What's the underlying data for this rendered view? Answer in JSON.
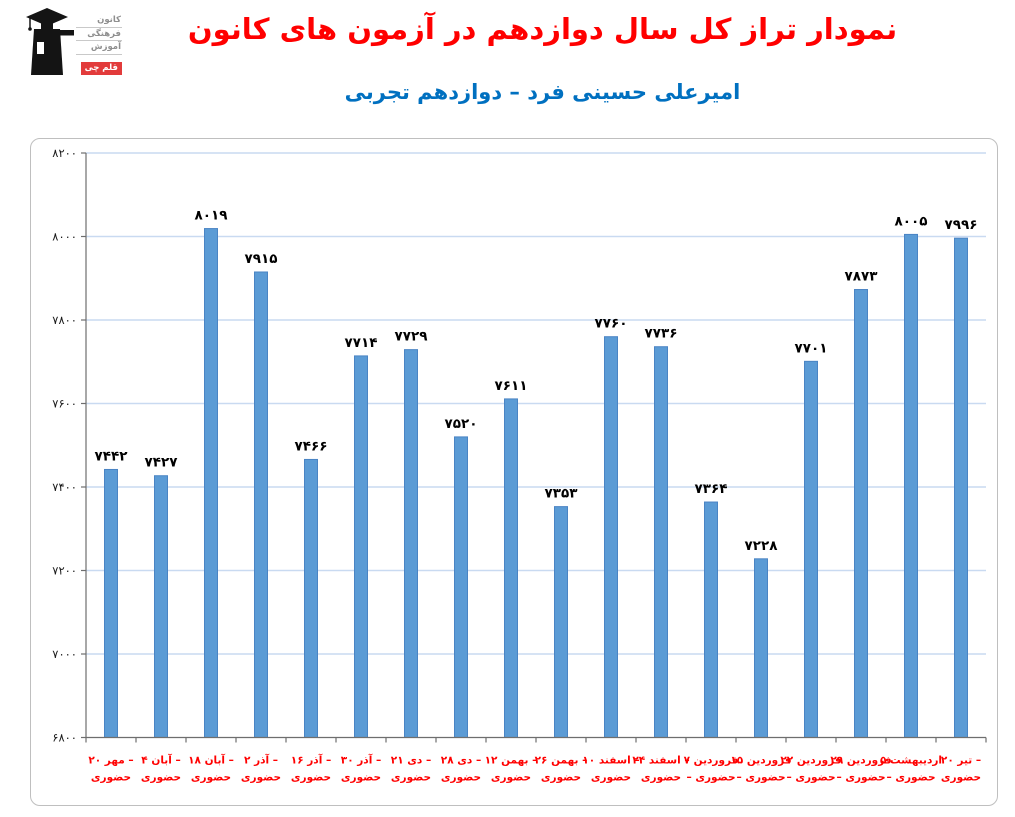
{
  "header": {
    "title": "نمودار تراز کل سال دوازدهم در آزمون های کانون",
    "subtitle": "امیرعلی حسینی فرد – دوازدهم تجربی",
    "title_color": "#ff0000",
    "subtitle_color": "#0070c0"
  },
  "logo": {
    "lines": [
      "كانون",
      "فرهنگی",
      "آموزش"
    ],
    "badge": "قلم چی",
    "badge_color": "#e23b3b"
  },
  "colors": {
    "bar_fill": "#5b9bd5",
    "bar_stroke": "#4a84c4",
    "gridline": "#c9daf1",
    "axis": "#6e6e6e",
    "value_label": "#000000",
    "x_label": "#ff0000",
    "y_label": "#1a1a1a",
    "frame_border": "#bfbfbf"
  },
  "chart_data": {
    "type": "bar",
    "title": "نمودار تراز کل سال دوازدهم در آزمون های کانون",
    "subtitle": "امیرعلی حسینی فرد – دوازدهم تجربی",
    "xlabel": "",
    "ylabel": "",
    "ylim": [
      6800,
      8200
    ],
    "grid": true,
    "legend": null,
    "y_tick_values": [
      8200,
      8000,
      7800,
      7600,
      7400,
      7200,
      7000,
      6800
    ],
    "y_tick_labels": [
      "۸۲۰۰",
      "۸۰۰۰",
      "۷۸۰۰",
      "۷۶۰۰",
      "۷۴۰۰",
      "۷۲۰۰",
      "۷۰۰۰",
      "۶۸۰۰"
    ],
    "categories": [
      "۲۰ مهر",
      "۴ آبان",
      "۱۸ آبان",
      "۲ آذر",
      "۱۶ آذر",
      "۳۰ آذر",
      "۲۱ دی",
      "۲۸ دی",
      "۱۲ بهمن",
      "۲۶ بهمن",
      "۱۰ اسفند",
      "۲۴ اسفند",
      "۷ فروردین",
      "۱۵ فروردین",
      "۲۲ فروردین",
      "۲۹ فروردین",
      "۵ اردیبهشت",
      "۲۰ تیر"
    ],
    "category_mode": "حضوری",
    "x_tick_labels": [
      [
        "۲۰ مهر –",
        "حضوری"
      ],
      [
        "۴ آبان –",
        "حضوری"
      ],
      [
        "۱۸ آبان –",
        "حضوری"
      ],
      [
        "۲ آذر –",
        "حضوری"
      ],
      [
        "۱۶ آذر –",
        "حضوری"
      ],
      [
        "۳۰ آذر –",
        "حضوری"
      ],
      [
        "۲۱ دی –",
        "حضوری"
      ],
      [
        "۲۸ دی –",
        "حضوری"
      ],
      [
        "۱۲ بهمن –",
        "حضوری"
      ],
      [
        "۲۶ بهمن –",
        "حضوری"
      ],
      [
        "۱۰ اسفند –",
        "حضوری"
      ],
      [
        "۲۴ اسفند –",
        "حضوری"
      ],
      [
        "۷ فروردین",
        "– حضوری"
      ],
      [
        "۱۵ فروردین",
        "– حضوری"
      ],
      [
        "۲۲ فروردین",
        "– حضوری"
      ],
      [
        "۲۹ فروردین",
        "– حضوری"
      ],
      [
        "۵ اردیبهشت",
        "– حضوری"
      ],
      [
        "۲۰ تیر –",
        "حضوری"
      ]
    ],
    "values": [
      7442,
      7427,
      8019,
      7915,
      7466,
      7714,
      7729,
      7520,
      7611,
      7353,
      7760,
      7736,
      7364,
      7228,
      7701,
      7873,
      8005,
      7996
    ],
    "value_labels": [
      "۷۴۴۲",
      "۷۴۲۷",
      "۸۰۱۹",
      "۷۹۱۵",
      "۷۴۶۶",
      "۷۷۱۴",
      "۷۷۲۹",
      "۷۵۲۰",
      "۷۶۱۱",
      "۷۳۵۳",
      "۷۷۶۰",
      "۷۷۳۶",
      "۷۳۶۴",
      "۷۲۲۸",
      "۷۷۰۱",
      "۷۸۷۳",
      "۸۰۰۵",
      "۷۹۹۶"
    ]
  }
}
